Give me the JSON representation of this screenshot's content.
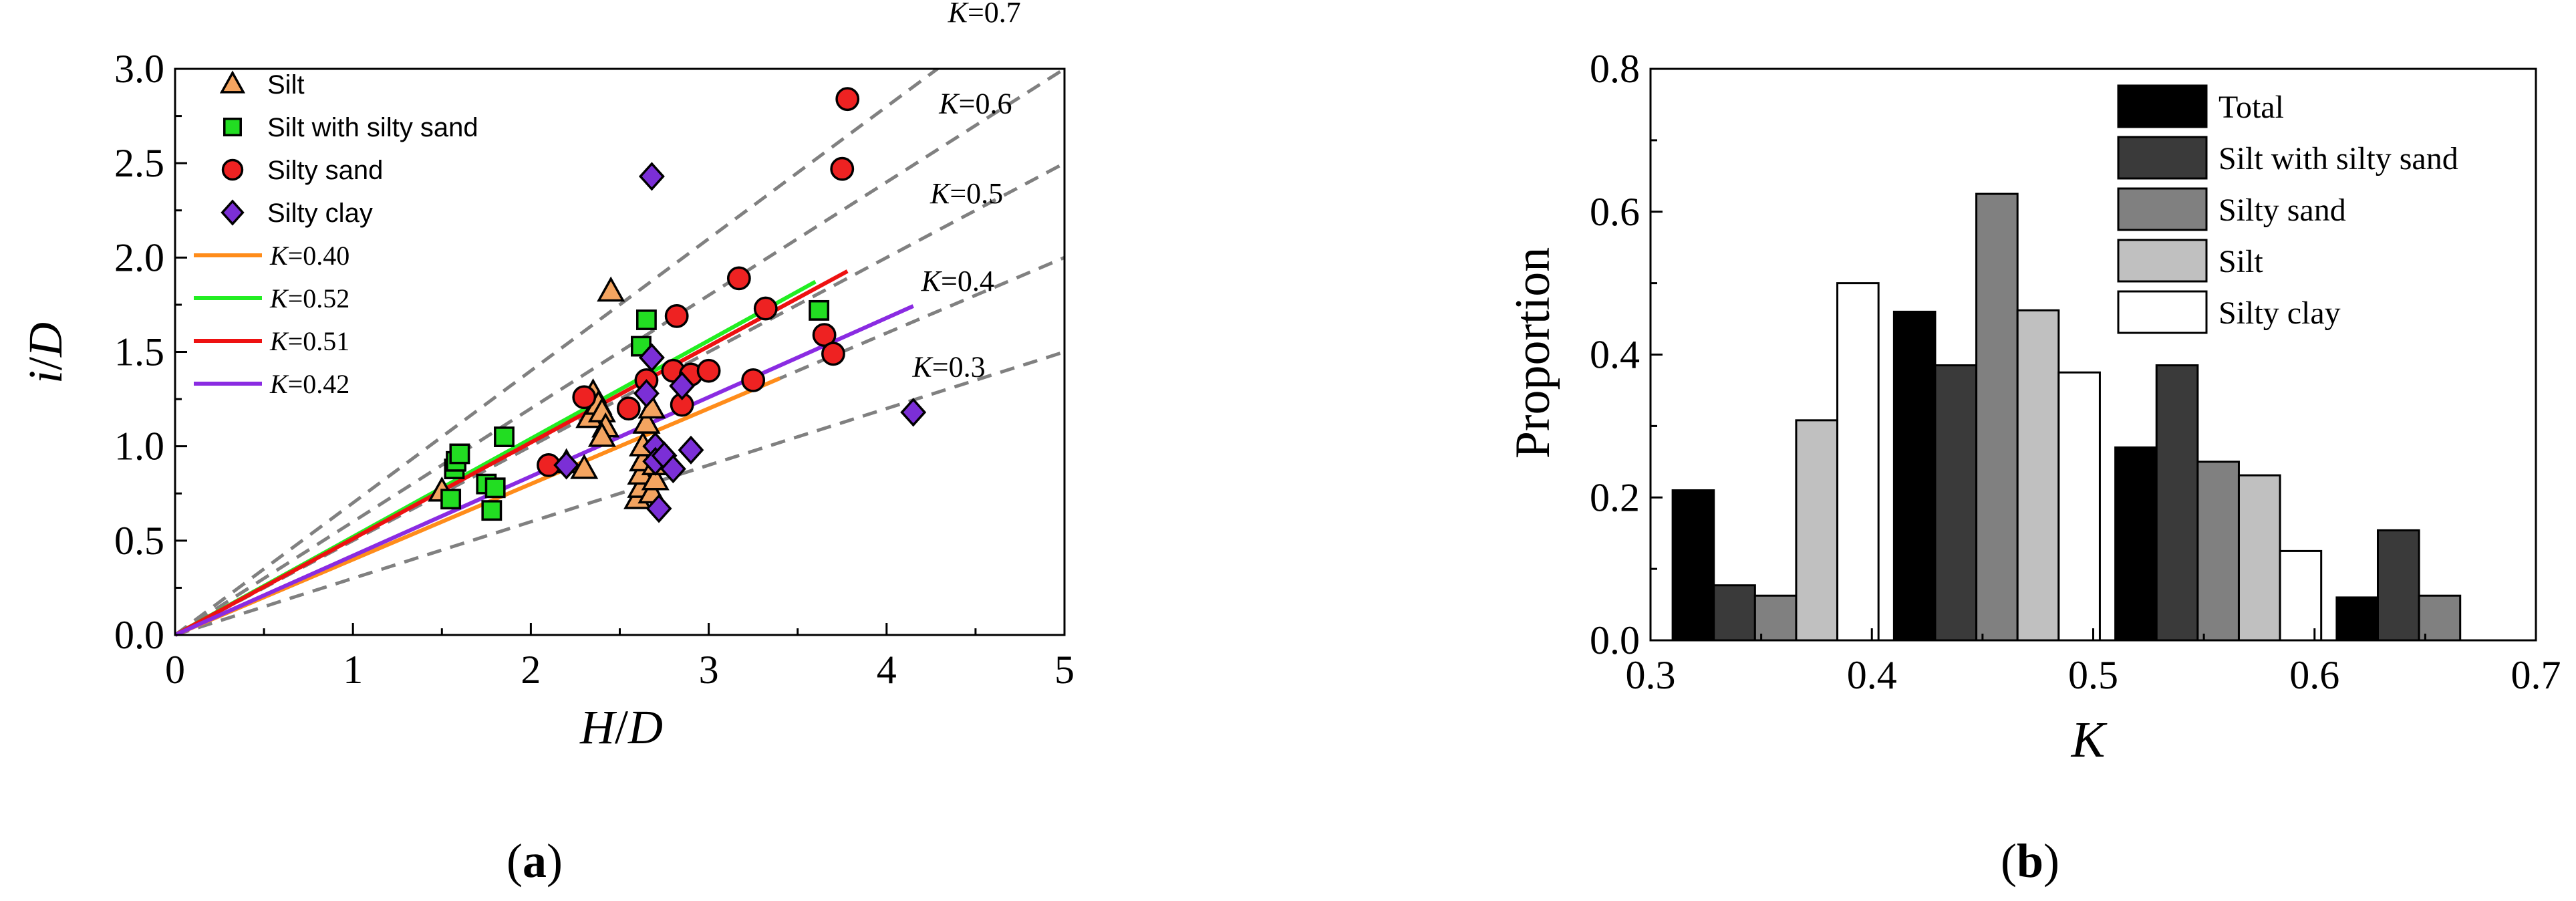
{
  "panels": {
    "a": {
      "label_open": "(",
      "label_letter": "a",
      "label_close": ")"
    },
    "b": {
      "label_open": "(",
      "label_letter": "b",
      "label_close": ")"
    }
  },
  "chart_data": [
    {
      "type": "scatter",
      "panel": "a",
      "xlabel": {
        "first": "H",
        "sep": "/",
        "second": "D"
      },
      "ylabel": {
        "first": "i",
        "sep": "/",
        "second": "D"
      },
      "xlim": [
        0,
        5
      ],
      "ylim": [
        0,
        3.0
      ],
      "xticks": [
        "0",
        "1",
        "2",
        "3",
        "4",
        "5"
      ],
      "yticks": [
        "0.0",
        "0.5",
        "1.0",
        "1.5",
        "2.0",
        "2.5",
        "3.0"
      ],
      "grid": false,
      "legend_position": "top-left",
      "series": [
        {
          "name": "Silt",
          "marker": "triangle",
          "color": "#f4a460",
          "points": [
            [
              1.5,
              0.76
            ],
            [
              2.2,
              0.91
            ],
            [
              2.3,
              0.88
            ],
            [
              2.33,
              1.15
            ],
            [
              2.35,
              1.28
            ],
            [
              2.38,
              1.22
            ],
            [
              2.4,
              1.18
            ],
            [
              2.42,
              1.1
            ],
            [
              2.4,
              1.05
            ],
            [
              2.45,
              1.82
            ],
            [
              2.6,
              0.72
            ],
            [
              2.62,
              0.78
            ],
            [
              2.62,
              0.85
            ],
            [
              2.63,
              0.92
            ],
            [
              2.63,
              1.0
            ],
            [
              2.65,
              1.12
            ],
            [
              2.68,
              0.75
            ],
            [
              2.68,
              1.2
            ],
            [
              2.7,
              0.82
            ],
            [
              2.7,
              0.9
            ]
          ]
        },
        {
          "name": "Silt with silty sand",
          "marker": "square",
          "color": "#22dd22",
          "points": [
            [
              1.55,
              0.72
            ],
            [
              1.57,
              0.88
            ],
            [
              1.58,
              0.92
            ],
            [
              1.6,
              0.96
            ],
            [
              1.75,
              0.8
            ],
            [
              1.78,
              0.66
            ],
            [
              1.8,
              0.78
            ],
            [
              1.85,
              1.05
            ],
            [
              2.62,
              1.53
            ],
            [
              2.65,
              1.67
            ],
            [
              3.62,
              1.72
            ]
          ]
        },
        {
          "name": "Silty sand",
          "marker": "circle",
          "color": "#ee2222",
          "points": [
            [
              2.1,
              0.9
            ],
            [
              2.3,
              1.26
            ],
            [
              2.55,
              1.2
            ],
            [
              2.65,
              1.35
            ],
            [
              2.8,
              1.4
            ],
            [
              2.82,
              1.69
            ],
            [
              2.85,
              1.22
            ],
            [
              2.9,
              1.38
            ],
            [
              3.0,
              1.4
            ],
            [
              3.17,
              1.89
            ],
            [
              3.25,
              1.35
            ],
            [
              3.32,
              1.73
            ],
            [
              3.65,
              1.59
            ],
            [
              3.7,
              1.49
            ],
            [
              3.75,
              2.47
            ],
            [
              3.78,
              2.84
            ]
          ]
        },
        {
          "name": "Silty clay",
          "marker": "diamond",
          "color": "#7b2fd6",
          "points": [
            [
              2.2,
              0.9
            ],
            [
              2.65,
              1.28
            ],
            [
              2.68,
              1.47
            ],
            [
              2.68,
              2.43
            ],
            [
              2.7,
              1.0
            ],
            [
              2.7,
              0.92
            ],
            [
              2.72,
              0.67
            ],
            [
              2.75,
              0.95
            ],
            [
              2.8,
              0.88
            ],
            [
              2.85,
              1.32
            ],
            [
              2.9,
              0.98
            ],
            [
              4.15,
              1.18
            ]
          ]
        }
      ],
      "fit_lines": [
        {
          "name": {
            "k": "K",
            "eq": "=",
            "v": "0.40"
          },
          "slope": 0.4,
          "x_range": [
            0,
            3.4
          ],
          "color": "#ff8c1a"
        },
        {
          "name": {
            "k": "K",
            "eq": "=",
            "v": "0.52"
          },
          "slope": 0.52,
          "x_range": [
            0,
            3.6
          ],
          "color": "#22ee22"
        },
        {
          "name": {
            "k": "K",
            "eq": "=",
            "v": "0.51"
          },
          "slope": 0.51,
          "x_range": [
            0,
            3.78
          ],
          "color": "#ee1111"
        },
        {
          "name": {
            "k": "K",
            "eq": "=",
            "v": "0.42"
          },
          "slope": 0.42,
          "x_range": [
            0,
            4.15
          ],
          "color": "#8a2be2"
        }
      ],
      "reference_lines": [
        {
          "label": {
            "k": "K",
            "eq": "=",
            "v": "0.7"
          },
          "K": 0.7
        },
        {
          "label": {
            "k": "K",
            "eq": "=",
            "v": "0.6"
          },
          "K": 0.6
        },
        {
          "label": {
            "k": "K",
            "eq": "=",
            "v": "0.5"
          },
          "K": 0.5
        },
        {
          "label": {
            "k": "K",
            "eq": "=",
            "v": "0.4"
          },
          "K": 0.4
        },
        {
          "label": {
            "k": "K",
            "eq": "=",
            "v": "0.3"
          },
          "K": 0.3
        }
      ]
    },
    {
      "type": "bar",
      "panel": "b",
      "xlabel": "K",
      "ylabel": "Proportion",
      "xlim": [
        0.3,
        0.7
      ],
      "ylim": [
        0,
        0.8
      ],
      "xticks": [
        "0.3",
        "0.4",
        "0.5",
        "0.6",
        "0.7"
      ],
      "yticks": [
        "0.0",
        "0.2",
        "0.4",
        "0.6",
        "0.8"
      ],
      "grid": false,
      "legend_position": "top-right",
      "bin_starts": [
        0.31,
        0.41,
        0.51,
        0.61
      ],
      "bin_width": 0.1,
      "series": [
        {
          "name": "Total",
          "color": "#000000",
          "values": [
            0.21,
            0.46,
            0.27,
            0.06
          ]
        },
        {
          "name": "Silt with silty sand",
          "color": "#3a3a3a",
          "values": [
            0.077,
            0.385,
            0.385,
            0.154
          ]
        },
        {
          "name": "Silty sand",
          "color": "#808080",
          "values": [
            0.0625,
            0.625,
            0.25,
            0.0625
          ]
        },
        {
          "name": "Silt",
          "color": "#c0c0c0",
          "values": [
            0.308,
            0.462,
            0.231,
            0
          ]
        },
        {
          "name": "Silty clay",
          "color": "#ffffff",
          "values": [
            0.5,
            0.375,
            0.125,
            0
          ]
        }
      ]
    }
  ]
}
